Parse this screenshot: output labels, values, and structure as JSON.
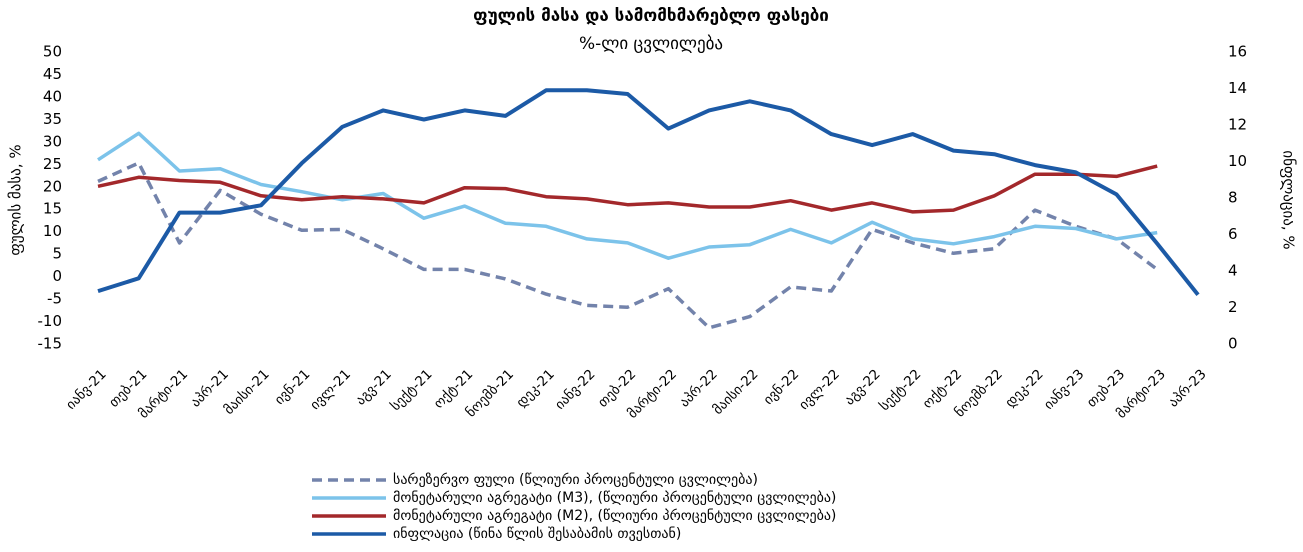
{
  "chart_data": {
    "type": "line",
    "title": "ფულის მასა და სამომხმარებლო ფასები",
    "subtitle": "%-ლი ცვლილება",
    "y_label": "ფულის მასა, %",
    "y2_label": "ინფლაცია, %",
    "categories": [
      "იანვ-21",
      "თებ-21",
      "მარტი-21",
      "აპრ-21",
      "მაისი-21",
      "ივნ-21",
      "ივლ-21",
      "აგვ-21",
      "სექტ-21",
      "ოქტ-21",
      "ნოემბ-21",
      "დეკ-21",
      "იანვ-22",
      "თებ-22",
      "მარტი-22",
      "აპრ-22",
      "მაისი-22",
      "ივნ-22",
      "ივლ-22",
      "აგვ-22",
      "სექტ-22",
      "ოქტ-22",
      "ნოემბ-22",
      "დეკ-22",
      "იანვ-23",
      "თებ-23",
      "მარტი-23",
      "აპრ-23"
    ],
    "ylim": [
      -15,
      50
    ],
    "yticks": [
      -15,
      -10,
      -5,
      0,
      5,
      10,
      15,
      20,
      25,
      30,
      35,
      40,
      45,
      50
    ],
    "y2lim": [
      0,
      16
    ],
    "y2ticks": [
      0,
      2,
      4,
      6,
      8,
      10,
      12,
      14,
      16
    ],
    "legend": "bottom",
    "series": [
      {
        "name": "სარეზერვო ფული (წლიური პროცენტული ცვლილება)",
        "color": "#7383ab",
        "line_style": "dashed",
        "values": [
          21.2,
          25.3,
          7.5,
          19.2,
          13.9,
          10.3,
          10.5,
          6.2,
          1.6,
          1.6,
          -0.5,
          -3.9,
          -6.4,
          -6.8,
          -2.7,
          -11.4,
          -8.9,
          -2.3,
          -3.2,
          10.5,
          7.5,
          5.2,
          6.2,
          14.8,
          11.2,
          8.4,
          1.6,
          null
        ]
      },
      {
        "name": "მონეტარული აგრეგატი (M3), (წლიური პროცენტული ცვლილება)",
        "color": "#7cc3ea",
        "line_style": "solid",
        "values": [
          26.0,
          31.9,
          23.5,
          24.0,
          20.5,
          18.9,
          17.1,
          18.5,
          13.0,
          15.7,
          11.9,
          11.2,
          8.4,
          7.5,
          4.1,
          6.6,
          7.1,
          10.5,
          7.5,
          12.1,
          8.4,
          7.3,
          8.9,
          11.2,
          10.7,
          8.4,
          9.8,
          null
        ]
      },
      {
        "name": "მონეტარული აგრეგატი (M2), (წლიური პროცენტული ცვლილება)",
        "color": "#a3282b",
        "line_style": "solid",
        "values": [
          20.1,
          22.1,
          21.4,
          21.0,
          18.0,
          17.1,
          17.8,
          17.3,
          16.4,
          19.8,
          19.6,
          17.8,
          17.3,
          16.0,
          16.4,
          15.5,
          15.5,
          16.9,
          14.8,
          16.4,
          14.4,
          14.8,
          18.0,
          22.8,
          22.8,
          22.3,
          24.6,
          null
        ]
      },
      {
        "name": "ინფლაცია (წინა წლის შესაბამის თვესთან)",
        "color": "#1c5aa6",
        "line_style": "solid",
        "axis": "y2",
        "values": [
          2.9,
          3.6,
          7.2,
          7.2,
          7.6,
          9.9,
          11.9,
          12.8,
          12.3,
          12.8,
          12.5,
          13.9,
          13.9,
          13.7,
          11.8,
          12.8,
          13.3,
          12.8,
          11.5,
          10.9,
          11.5,
          10.6,
          10.4,
          9.8,
          9.4,
          8.2,
          5.5,
          2.7
        ]
      }
    ]
  }
}
